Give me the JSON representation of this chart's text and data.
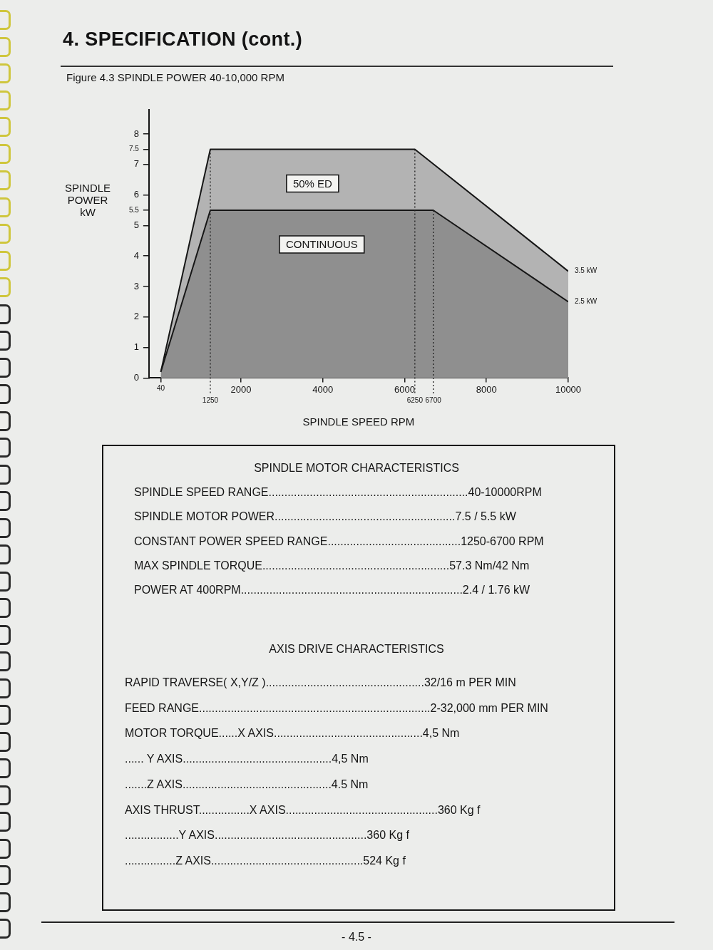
{
  "chart_data": [
    {
      "type": "area",
      "title": "4. SPECIFICATION (cont.)",
      "subtitle": "Figure 4.3 SPINDLE POWER 40-10,000 RPM",
      "xlabel": "SPINDLE SPEED RPM",
      "ylabel": "SPINDLE POWER kW",
      "series": [
        {
          "name": "50% ED",
          "color": "#b3b3b3",
          "x": [
            40,
            1250,
            6250,
            10000
          ],
          "values": [
            0.2,
            7.5,
            7.5,
            3.5
          ],
          "value_labels": [
            null,
            null,
            null,
            "3.5 kW"
          ]
        },
        {
          "name": "CONTINUOUS",
          "color": "#8f8f8f",
          "x": [
            40,
            1250,
            6700,
            10000
          ],
          "values": [
            0.2,
            5.5,
            5.5,
            2.5
          ],
          "value_labels": [
            null,
            null,
            null,
            "2.5 kW"
          ]
        }
      ],
      "xlim": [
        -250,
        10000
      ],
      "xticks": [
        40,
        2000,
        4000,
        6000,
        8000,
        10000
      ],
      "ylim": [
        0,
        8.8
      ],
      "yticks": [
        0,
        1,
        2,
        3,
        4,
        5,
        5.5,
        6,
        7,
        7.5,
        8
      ],
      "ref_lines": [
        {
          "axis": "x",
          "value": 1250,
          "label": "1250",
          "line_style": "dotted"
        },
        {
          "axis": "x",
          "value": 6250,
          "label": "6250",
          "line_style": "dotted"
        },
        {
          "axis": "x",
          "value": 6700,
          "label": "6700",
          "line_style": "dotted"
        }
      ],
      "grid": false,
      "legend": false,
      "marker": "none"
    },
    {
      "type": "other",
      "title": "SPINDLE MOTOR CHARACTERISTICS",
      "annotations": [
        "SPINDLE SPEED RANGE...............................................................40-10000RPM",
        "SPINDLE MOTOR POWER.........................................................7.5 / 5.5 kW",
        "CONSTANT POWER SPEED RANGE..........................................1250-6700 RPM",
        "MAX SPINDLE TORQUE...........................................................57.3 Nm/42 Nm",
        "POWER AT 400RPM......................................................................2.4 / 1.76 kW"
      ]
    },
    {
      "type": "other",
      "title": "AXIS DRIVE CHARACTERISTICS",
      "annotations": [
        "RAPID TRAVERSE( X,Y/Z )..................................................32/16 m PER MIN",
        "FEED RANGE.........................................................................2-32,000 mm PER MIN",
        "MOTOR TORQUE......X AXIS...............................................4,5 Nm",
        "...... Y AXIS...............................................4,5 Nm",
        ".......Z AXIS...............................................4.5 Nm",
        "AXIS THRUST................X AXIS................................................360 Kg f",
        ".................Y AXIS................................................360 Kg f",
        "................Z AXIS................................................524 Kg f"
      ]
    },
    {
      "type": "other",
      "annotations": [
        "- 4.5 -"
      ]
    }
  ]
}
